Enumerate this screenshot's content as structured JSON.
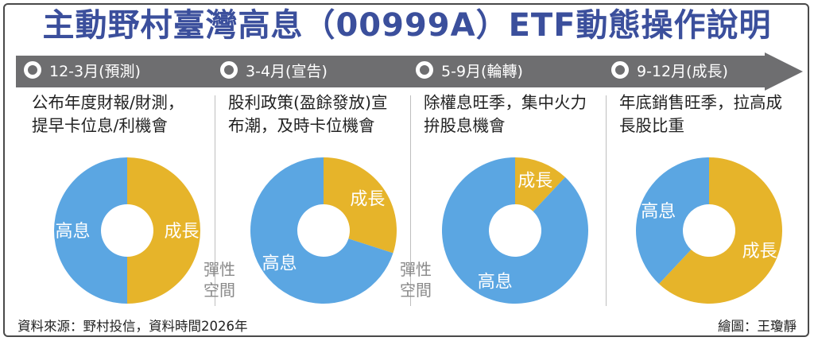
{
  "title": "主動野村臺灣高息（00999A）ETF動態操作說明",
  "colors": {
    "title": "#3b4f9c",
    "arrow": "#6e6e70",
    "high_yield": "#5ba6e2",
    "growth": "#e6b42a",
    "flex": "#8a8a8a"
  },
  "periods": [
    {
      "label": "12-3月(預測)",
      "desc": [
        "公布年度財報/財測，",
        "提早卡位息/利機會"
      ]
    },
    {
      "label": "3-4月(宣告)",
      "desc": [
        "股利政策(盈餘發放)宣",
        "布潮，及時卡位機會"
      ]
    },
    {
      "label": "5-9月(輪轉)",
      "desc": [
        "除權息旺季，集中火力",
        "拚股息機會"
      ]
    },
    {
      "label": "9-12月(成長)",
      "desc": [
        "年底銷售旺季，拉高成",
        "長股比重"
      ]
    }
  ],
  "chart_data": [
    {
      "type": "pie",
      "title": "12-3月(預測)",
      "categories": [
        "成長",
        "高息"
      ],
      "values": [
        50,
        50
      ],
      "annotation": "彈性空間"
    },
    {
      "type": "pie",
      "title": "3-4月(宣告)",
      "categories": [
        "成長",
        "高息"
      ],
      "values": [
        30,
        70
      ],
      "annotation": "彈性空間"
    },
    {
      "type": "pie",
      "title": "5-9月(輪轉)",
      "categories": [
        "成長",
        "高息"
      ],
      "values": [
        12,
        88
      ]
    },
    {
      "type": "pie",
      "title": "9-12月(成長)",
      "categories": [
        "成長",
        "高息"
      ],
      "values": [
        62,
        38
      ]
    }
  ],
  "flex_label": [
    "彈性",
    "空間"
  ],
  "source": "資料來源：野村投信，資料時間2026年",
  "credit": "繪圖：王瓊靜"
}
